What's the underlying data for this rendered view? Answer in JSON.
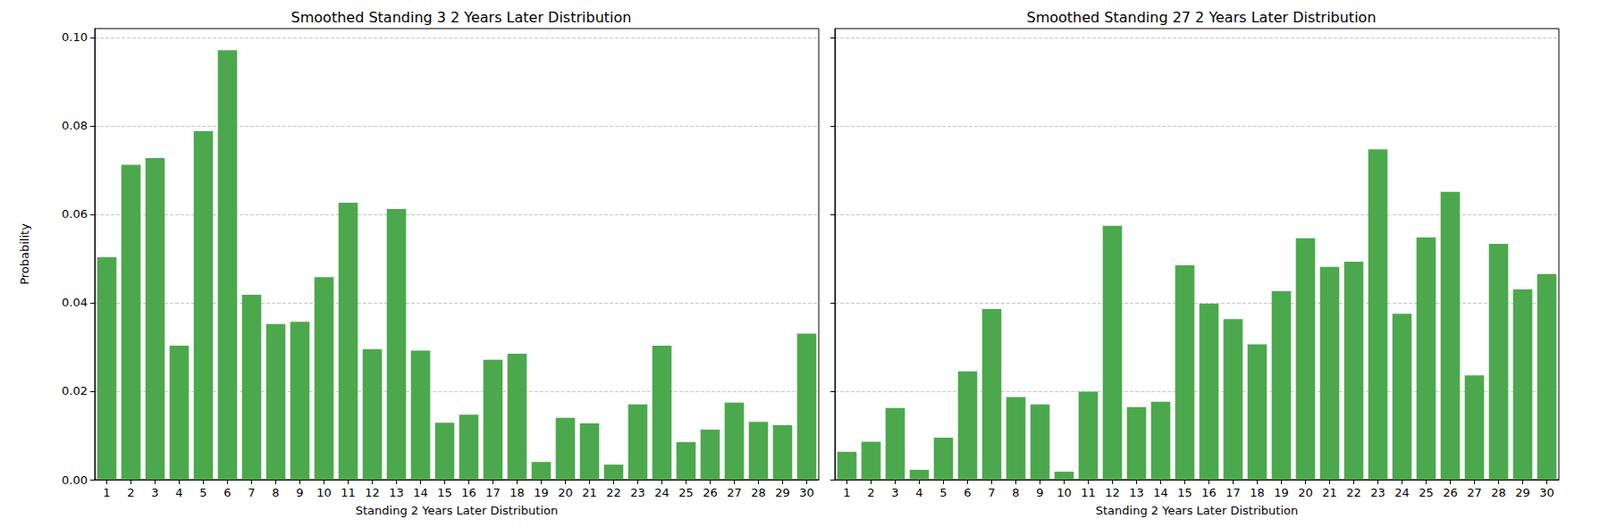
{
  "chart_data": [
    {
      "type": "bar",
      "title": "Smoothed Standing 3 2 Years Later Distribution",
      "xlabel": "Standing 2 Years Later Distribution",
      "ylabel": "Probability",
      "categories": [
        "1",
        "2",
        "3",
        "4",
        "5",
        "6",
        "7",
        "8",
        "9",
        "10",
        "11",
        "12",
        "13",
        "14",
        "15",
        "16",
        "17",
        "18",
        "19",
        "20",
        "21",
        "22",
        "23",
        "24",
        "25",
        "26",
        "27",
        "28",
        "29",
        "30"
      ],
      "values": [
        0.0503,
        0.0712,
        0.0727,
        0.0303,
        0.0788,
        0.0971,
        0.0418,
        0.0352,
        0.0357,
        0.0458,
        0.0626,
        0.0295,
        0.0612,
        0.0292,
        0.0129,
        0.0147,
        0.0271,
        0.0285,
        0.004,
        0.014,
        0.0127,
        0.0034,
        0.017,
        0.0303,
        0.0085,
        0.0113,
        0.0174,
        0.0131,
        0.0123,
        0.033
      ],
      "color": "#4ca84c",
      "ylim": [
        0,
        0.102
      ],
      "yticks": [
        {
          "value": 0,
          "label": "0.00"
        },
        {
          "value": 0.02,
          "label": "0.02"
        },
        {
          "value": 0.04,
          "label": "0.04"
        },
        {
          "value": 0.06,
          "label": "0.06"
        },
        {
          "value": 0.08,
          "label": "0.08"
        },
        {
          "value": 0.1,
          "label": "0.10"
        }
      ],
      "grid": true
    },
    {
      "type": "bar",
      "title": "Smoothed Standing 27 2 Years Later Distribution",
      "xlabel": "Standing 2 Years Later Distribution",
      "categories": [
        "1",
        "2",
        "3",
        "4",
        "5",
        "6",
        "7",
        "8",
        "9",
        "10",
        "11",
        "12",
        "13",
        "14",
        "15",
        "16",
        "17",
        "18",
        "19",
        "20",
        "21",
        "22",
        "23",
        "24",
        "25",
        "26",
        "27",
        "28",
        "29",
        "30"
      ],
      "values": [
        0.0063,
        0.0086,
        0.0162,
        0.0022,
        0.0095,
        0.0245,
        0.0386,
        0.0187,
        0.017,
        0.0018,
        0.0199,
        0.0574,
        0.0164,
        0.0176,
        0.0485,
        0.0398,
        0.0363,
        0.0306,
        0.0426,
        0.0546,
        0.0481,
        0.0493,
        0.0747,
        0.0375,
        0.0548,
        0.0651,
        0.0236,
        0.0533,
        0.043,
        0.0465
      ],
      "color": "#4ca84c",
      "ylim": [
        0,
        0.102
      ],
      "yticks": [
        {
          "value": 0,
          "label": "0.00"
        },
        {
          "value": 0.02,
          "label": "0.02"
        },
        {
          "value": 0.04,
          "label": "0.04"
        },
        {
          "value": 0.06,
          "label": "0.06"
        },
        {
          "value": 0.08,
          "label": "0.08"
        },
        {
          "value": 0.1,
          "label": "0.10"
        }
      ],
      "grid": true,
      "tick_labels": "x"
    }
  ]
}
